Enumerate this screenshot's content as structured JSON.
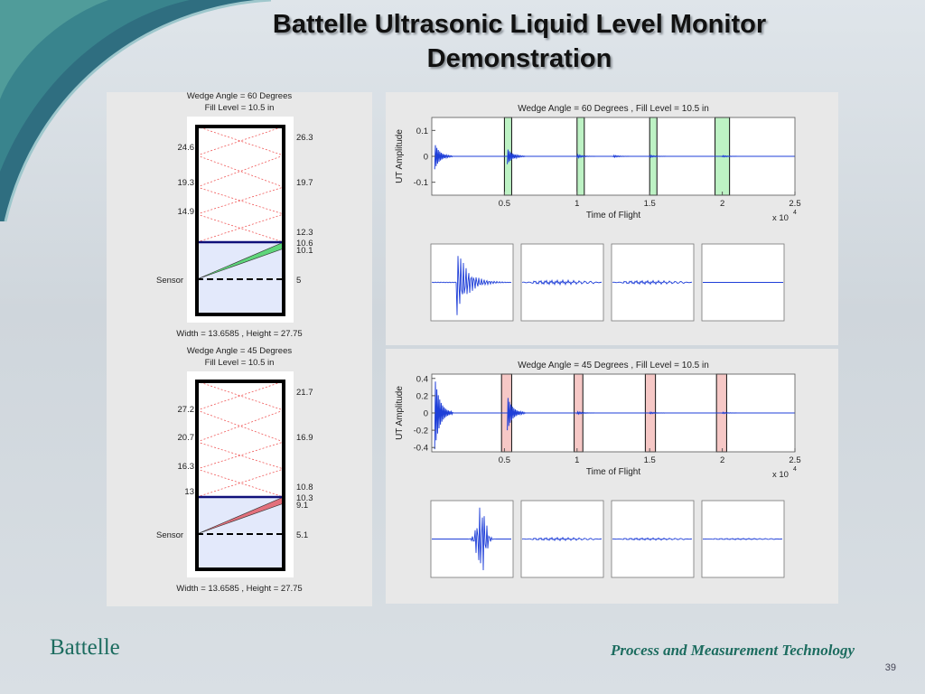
{
  "slide": {
    "title_line1": "Battelle Ultrasonic Liquid Level Monitor",
    "title_line2": "Demonstration",
    "footer_left": "Battelle",
    "footer_right": "Process and Measurement Technology",
    "page_number": "39"
  },
  "chart_data": [
    {
      "type": "diagram",
      "title_line1": "Wedge Angle = 60 Degrees",
      "title_line2": "Fill Level = 10.5 in",
      "left_labels": [
        "24.6",
        "19.3",
        "14.9"
      ],
      "sensor_label": "Sensor",
      "right_labels": [
        "26.3",
        "19.7",
        "12.3",
        "10.6",
        "10.1",
        "5"
      ],
      "caption": "Width = 13.6585 , Height = 27.75",
      "wedge_color": "#5fd67b"
    },
    {
      "type": "line",
      "title": "Wedge Angle = 60 Degrees , Fill Level = 10.5 in",
      "ylabel": "UT Amplitude",
      "xlabel": "Time of Flight",
      "x_multiplier": "x 10",
      "x_exponent": "4",
      "xlim": [
        0,
        2.5
      ],
      "ylim": [
        -0.15,
        0.15
      ],
      "x_ticks": [
        "0.5",
        "1",
        "1.5",
        "2",
        "2.5"
      ],
      "y_ticks": [
        "0.1",
        "0",
        "-0.1"
      ],
      "y_tick_values": [
        0.1,
        0,
        -0.1
      ],
      "windows": [
        [
          0.5,
          0.55
        ],
        [
          1.0,
          1.05
        ],
        [
          1.5,
          1.55
        ],
        [
          1.95,
          2.05
        ]
      ],
      "window_color": "#bdf2c4",
      "trace_color": "#1f3fd8",
      "echoes": [
        {
          "x": 0.02,
          "amp": 0.05
        },
        {
          "x": 0.52,
          "amp": 0.03
        },
        {
          "x": 1.0,
          "amp": 0.006
        },
        {
          "x": 1.25,
          "amp": 0.004
        },
        {
          "x": 1.5,
          "amp": 0.004
        },
        {
          "x": 2.0,
          "amp": 0.003
        }
      ],
      "insets": [
        {
          "amp": 0.95,
          "decay": "long"
        },
        {
          "amp": 0.06,
          "decay": "noise"
        },
        {
          "amp": 0.05,
          "decay": "noise"
        },
        {
          "amp": 0.0,
          "decay": "flat"
        }
      ]
    },
    {
      "type": "diagram",
      "title_line1": "Wedge Angle = 45 Degrees",
      "title_line2": "Fill Level = 10.5 in",
      "left_labels": [
        "27.2",
        "20.7",
        "16.3",
        "13"
      ],
      "sensor_label": "Sensor",
      "right_labels": [
        "21.7",
        "16.9",
        "10.8",
        "10.3",
        "9.1",
        "5.1"
      ],
      "caption": "Width = 13.6585 , Height = 27.75",
      "wedge_color": "#e3707c"
    },
    {
      "type": "line",
      "title": "Wedge Angle = 45 Degrees , Fill Level = 10.5 in",
      "ylabel": "UT Amplitude",
      "xlabel": "Time of Flight",
      "x_multiplier": "x 10",
      "x_exponent": "4",
      "xlim": [
        0,
        2.5
      ],
      "ylim": [
        -0.45,
        0.45
      ],
      "x_ticks": [
        "0.5",
        "1",
        "1.5",
        "2",
        "2.5"
      ],
      "y_ticks": [
        "0.4",
        "0.2",
        "0",
        "-0.2",
        "-0.4"
      ],
      "y_tick_values": [
        0.4,
        0.2,
        0,
        -0.2,
        -0.4
      ],
      "windows": [
        [
          0.48,
          0.55
        ],
        [
          0.98,
          1.04
        ],
        [
          1.47,
          1.54
        ],
        [
          1.96,
          2.03
        ]
      ],
      "window_color": "#f6c8c6",
      "trace_color": "#1f3fd8",
      "echoes": [
        {
          "x": 0.02,
          "amp": 0.42
        },
        {
          "x": 0.52,
          "amp": 0.2
        },
        {
          "x": 1.0,
          "amp": 0.015
        },
        {
          "x": 1.5,
          "amp": 0.01
        },
        {
          "x": 2.0,
          "amp": 0.008
        }
      ],
      "insets": [
        {
          "amp": 0.95,
          "decay": "burst"
        },
        {
          "amp": 0.04,
          "decay": "noise"
        },
        {
          "amp": 0.03,
          "decay": "noise"
        },
        {
          "amp": 0.02,
          "decay": "noise"
        }
      ]
    }
  ]
}
